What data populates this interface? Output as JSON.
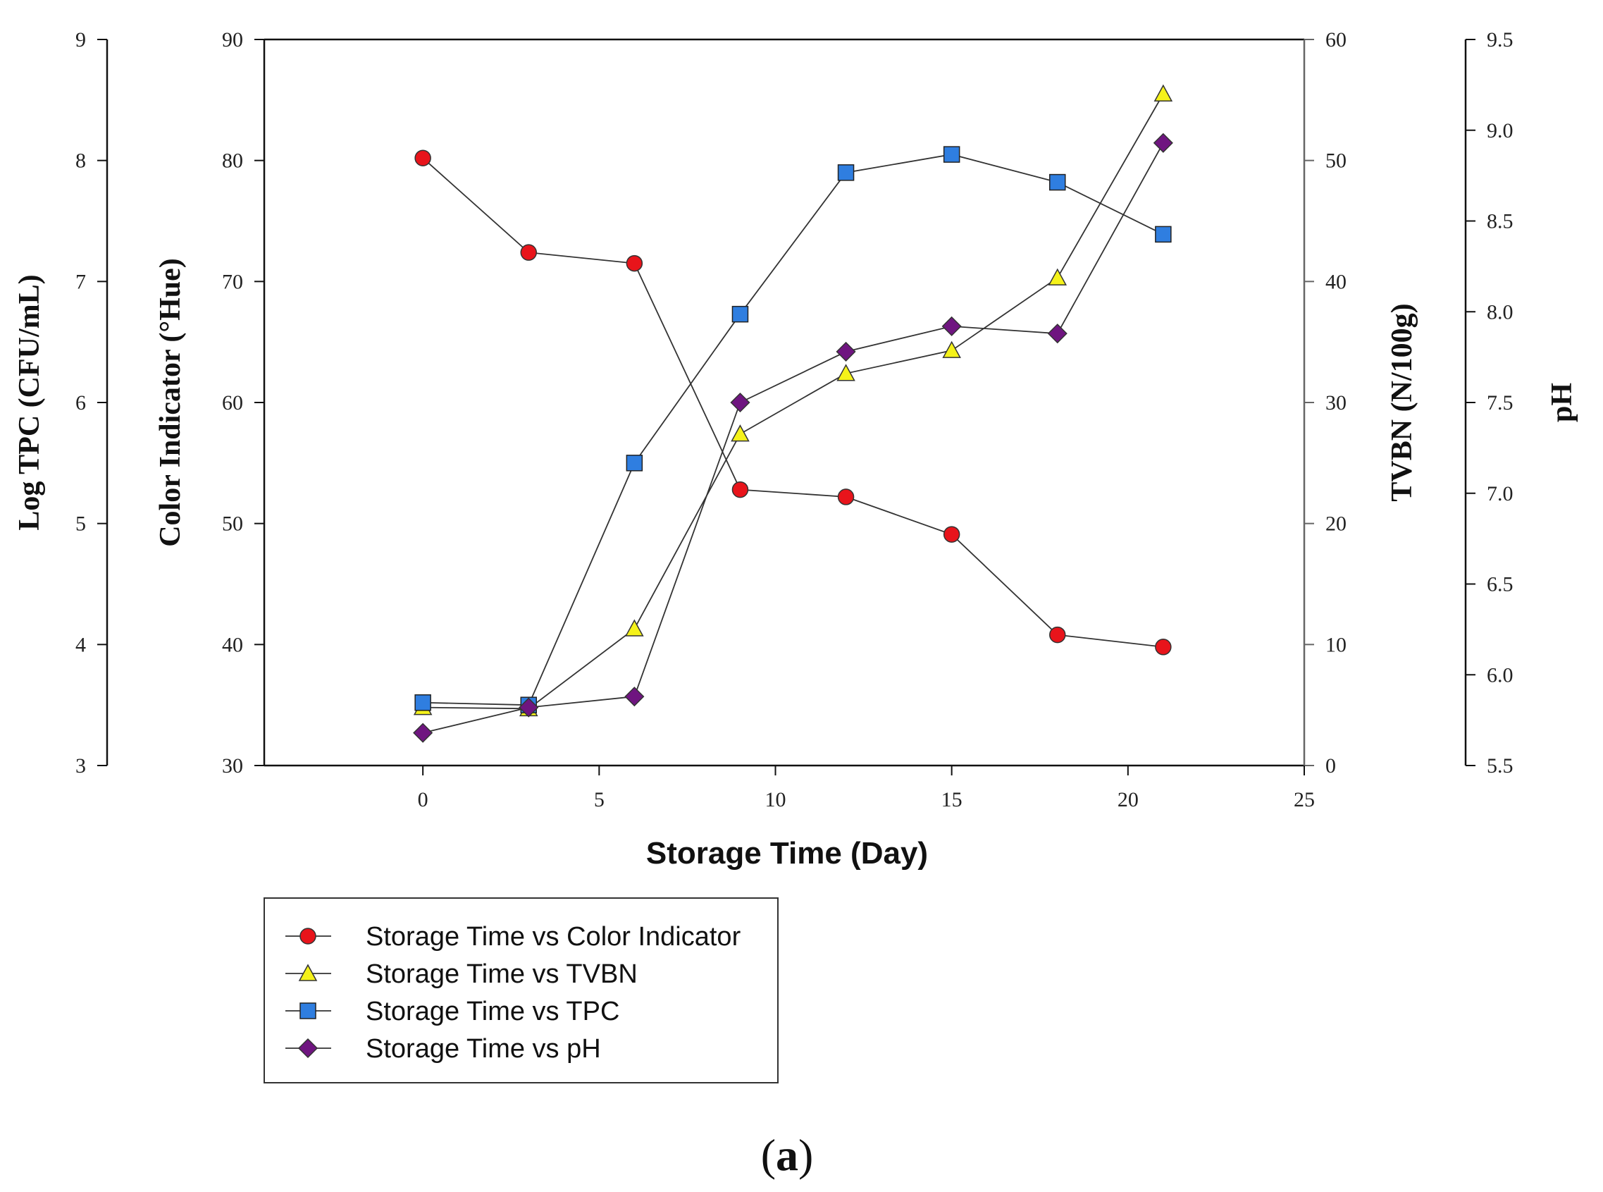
{
  "chart_data": {
    "type": "line",
    "x": [
      0,
      3,
      6,
      9,
      12,
      15,
      18,
      21
    ],
    "xlabel": "Storage Time (Day)",
    "xlim": [
      -4.5,
      25
    ],
    "xticks": [
      "0",
      "5",
      "10",
      "15",
      "20",
      "25"
    ],
    "xtick_values": [
      0,
      5,
      10,
      15,
      20,
      25
    ],
    "caption": {
      "open": "(",
      "label": "a",
      "close": ")"
    },
    "axes": {
      "tpc": {
        "label": "Log TPC (CFU/mL)",
        "side": "left-outer",
        "range": [
          3,
          9
        ],
        "ticks": [
          "3",
          "4",
          "5",
          "6",
          "7",
          "8",
          "9"
        ],
        "tick_values": [
          3,
          4,
          5,
          6,
          7,
          8,
          9
        ]
      },
      "color": {
        "label": "Color Indicator  (°Hue)",
        "side": "left-inner",
        "range": [
          30,
          90
        ],
        "ticks": [
          "30",
          "40",
          "50",
          "60",
          "70",
          "80",
          "90"
        ],
        "tick_values": [
          30,
          40,
          50,
          60,
          70,
          80,
          90
        ]
      },
      "tvbn": {
        "label": "TVBN (N/100g)",
        "side": "right-inner",
        "range": [
          0,
          60
        ],
        "ticks": [
          "0",
          "10",
          "20",
          "30",
          "40",
          "50",
          "60"
        ],
        "tick_values": [
          0,
          10,
          20,
          30,
          40,
          50,
          60
        ]
      },
      "ph": {
        "label": "pH",
        "side": "right-outer",
        "range": [
          5.5,
          9.5
        ],
        "ticks": [
          "5.5",
          "6.0",
          "6.5",
          "7.0",
          "7.5",
          "8.0",
          "8.5",
          "9.0",
          "9.5"
        ],
        "tick_values": [
          5.5,
          6.0,
          6.5,
          7.0,
          7.5,
          8.0,
          8.5,
          9.0,
          9.5
        ]
      }
    },
    "series": [
      {
        "name": "Storage Time vs Color Indicator",
        "axis": "color",
        "marker": "circle",
        "color": "#e8141b",
        "values": [
          80.2,
          72.4,
          71.5,
          52.8,
          52.2,
          49.1,
          40.8,
          39.8
        ]
      },
      {
        "name": "Storage Time vs TVBN",
        "axis": "tvbn",
        "marker": "triangle",
        "color": "#f5f21a",
        "values": [
          4.8,
          4.7,
          11.3,
          27.4,
          32.4,
          34.3,
          40.3,
          55.5
        ]
      },
      {
        "name": "Storage Time vs TPC",
        "axis": "tpc",
        "marker": "square",
        "color": "#2f7ee0",
        "values": [
          3.52,
          3.5,
          5.5,
          6.73,
          7.9,
          8.05,
          7.82,
          7.39
        ]
      },
      {
        "name": "Storage Time vs pH",
        "axis": "ph",
        "marker": "diamond",
        "color": "#6f1580",
        "values": [
          5.68,
          5.82,
          5.88,
          7.5,
          7.78,
          7.92,
          7.88,
          8.93
        ]
      }
    ],
    "legend": {
      "position": "bottom-left",
      "entries": [
        "Storage Time vs Color Indicator",
        "Storage Time vs TVBN",
        "Storage Time vs TPC",
        "Storage Time vs pH"
      ]
    }
  }
}
